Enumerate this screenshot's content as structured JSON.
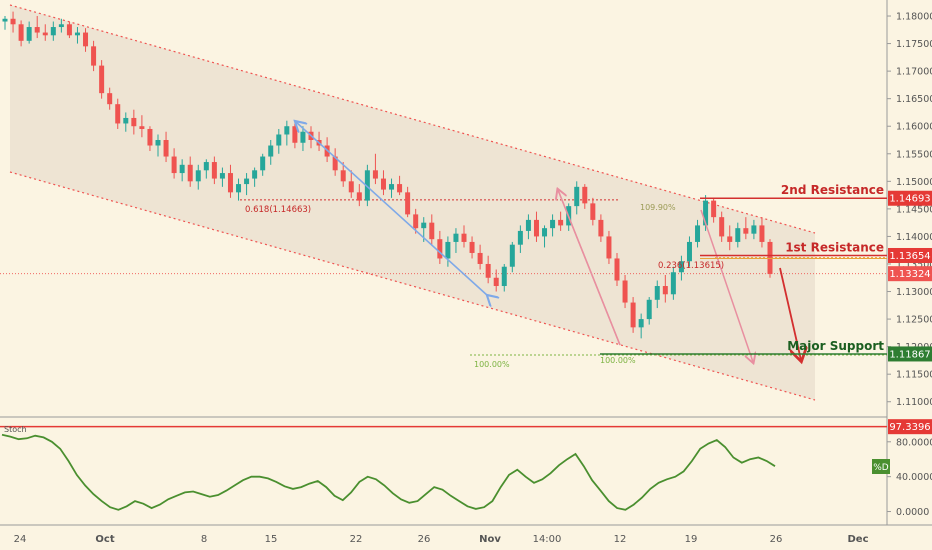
{
  "chart_data": [
    {
      "type": "candlestick",
      "y_ticks": [
        "1.18000",
        "1.17500",
        "1.17000",
        "1.16500",
        "1.16000",
        "1.15500",
        "1.15000",
        "1.14500",
        "1.14000",
        "1.13500",
        "1.13000",
        "1.12500",
        "1.12000",
        "1.11500",
        "1.11000"
      ],
      "ylim": [
        1.1085,
        1.182
      ],
      "x_ticks": [
        "24",
        "Oct",
        "8",
        "15",
        "22",
        "26",
        "Nov",
        "14:00",
        "12",
        "19",
        "26",
        "Dec"
      ],
      "candles": [
        [
          1.179,
          1.18,
          1.1775,
          1.1795
        ],
        [
          1.1795,
          1.1808,
          1.177,
          1.1785
        ],
        [
          1.1785,
          1.1792,
          1.1745,
          1.1755
        ],
        [
          1.1755,
          1.179,
          1.175,
          1.178
        ],
        [
          1.178,
          1.18,
          1.176,
          1.177
        ],
        [
          1.177,
          1.1785,
          1.1755,
          1.1765
        ],
        [
          1.1765,
          1.179,
          1.1755,
          1.178
        ],
        [
          1.178,
          1.1795,
          1.177,
          1.1785
        ],
        [
          1.1785,
          1.179,
          1.176,
          1.1765
        ],
        [
          1.1765,
          1.178,
          1.175,
          1.177
        ],
        [
          1.177,
          1.1778,
          1.1735,
          1.1745
        ],
        [
          1.1745,
          1.1755,
          1.17,
          1.171
        ],
        [
          1.171,
          1.172,
          1.165,
          1.166
        ],
        [
          1.166,
          1.167,
          1.163,
          1.164
        ],
        [
          1.164,
          1.165,
          1.1595,
          1.1605
        ],
        [
          1.1605,
          1.1625,
          1.159,
          1.1615
        ],
        [
          1.1615,
          1.163,
          1.1585,
          1.16
        ],
        [
          1.16,
          1.162,
          1.158,
          1.1595
        ],
        [
          1.1595,
          1.16,
          1.1555,
          1.1565
        ],
        [
          1.1565,
          1.1585,
          1.1545,
          1.1575
        ],
        [
          1.1575,
          1.159,
          1.1535,
          1.1545
        ],
        [
          1.1545,
          1.156,
          1.1505,
          1.1515
        ],
        [
          1.1515,
          1.154,
          1.15,
          1.153
        ],
        [
          1.153,
          1.1545,
          1.149,
          1.15
        ],
        [
          1.15,
          1.153,
          1.1485,
          1.152
        ],
        [
          1.152,
          1.154,
          1.1505,
          1.1535
        ],
        [
          1.1535,
          1.1545,
          1.1495,
          1.1505
        ],
        [
          1.1505,
          1.1525,
          1.149,
          1.1515
        ],
        [
          1.1515,
          1.153,
          1.147,
          1.148
        ],
        [
          1.148,
          1.1505,
          1.1465,
          1.1495
        ],
        [
          1.1495,
          1.1515,
          1.1475,
          1.1505
        ],
        [
          1.1505,
          1.1525,
          1.149,
          1.152
        ],
        [
          1.152,
          1.155,
          1.151,
          1.1545
        ],
        [
          1.1545,
          1.1575,
          1.153,
          1.1565
        ],
        [
          1.1565,
          1.1595,
          1.155,
          1.1585
        ],
        [
          1.1585,
          1.161,
          1.1565,
          1.16
        ],
        [
          1.16,
          1.1605,
          1.156,
          1.157
        ],
        [
          1.157,
          1.16,
          1.1555,
          1.159
        ],
        [
          1.159,
          1.16,
          1.156,
          1.1575
        ],
        [
          1.1575,
          1.159,
          1.1555,
          1.1565
        ],
        [
          1.1565,
          1.158,
          1.1535,
          1.1545
        ],
        [
          1.1545,
          1.156,
          1.151,
          1.152
        ],
        [
          1.152,
          1.1535,
          1.149,
          1.15
        ],
        [
          1.15,
          1.152,
          1.147,
          1.148
        ],
        [
          1.148,
          1.1495,
          1.1455,
          1.1465
        ],
        [
          1.1465,
          1.153,
          1.1455,
          1.152
        ],
        [
          1.152,
          1.155,
          1.1495,
          1.1505
        ],
        [
          1.1505,
          1.152,
          1.1475,
          1.1485
        ],
        [
          1.1485,
          1.1505,
          1.147,
          1.1495
        ],
        [
          1.1495,
          1.151,
          1.1475,
          1.148
        ],
        [
          1.148,
          1.149,
          1.1435,
          1.144
        ],
        [
          1.144,
          1.145,
          1.1405,
          1.1415
        ],
        [
          1.1415,
          1.1435,
          1.139,
          1.1425
        ],
        [
          1.1425,
          1.144,
          1.1385,
          1.1395
        ],
        [
          1.1395,
          1.141,
          1.135,
          1.136
        ],
        [
          1.136,
          1.14,
          1.1345,
          1.139
        ],
        [
          1.139,
          1.1415,
          1.137,
          1.1405
        ],
        [
          1.1405,
          1.142,
          1.138,
          1.139
        ],
        [
          1.139,
          1.14,
          1.136,
          1.137
        ],
        [
          1.137,
          1.1385,
          1.134,
          1.135
        ],
        [
          1.135,
          1.1365,
          1.1315,
          1.1325
        ],
        [
          1.1325,
          1.134,
          1.13,
          1.131
        ],
        [
          1.131,
          1.135,
          1.13,
          1.1345
        ],
        [
          1.1345,
          1.139,
          1.1335,
          1.1385
        ],
        [
          1.1385,
          1.142,
          1.137,
          1.141
        ],
        [
          1.141,
          1.144,
          1.1395,
          1.143
        ],
        [
          1.143,
          1.1445,
          1.139,
          1.14
        ],
        [
          1.14,
          1.142,
          1.138,
          1.1415
        ],
        [
          1.1415,
          1.144,
          1.14,
          1.143
        ],
        [
          1.143,
          1.1445,
          1.141,
          1.142
        ],
        [
          1.142,
          1.146,
          1.141,
          1.1455
        ],
        [
          1.1455,
          1.15,
          1.144,
          1.149
        ],
        [
          1.149,
          1.1495,
          1.145,
          1.146
        ],
        [
          1.146,
          1.147,
          1.142,
          1.143
        ],
        [
          1.143,
          1.144,
          1.139,
          1.14
        ],
        [
          1.14,
          1.141,
          1.135,
          1.136
        ],
        [
          1.136,
          1.137,
          1.131,
          1.132
        ],
        [
          1.132,
          1.133,
          1.127,
          1.128
        ],
        [
          1.128,
          1.129,
          1.1225,
          1.1235
        ],
        [
          1.1235,
          1.126,
          1.1215,
          1.125
        ],
        [
          1.125,
          1.129,
          1.124,
          1.1285
        ],
        [
          1.1285,
          1.132,
          1.127,
          1.131
        ],
        [
          1.131,
          1.133,
          1.128,
          1.1295
        ],
        [
          1.1295,
          1.1345,
          1.1285,
          1.1335
        ],
        [
          1.1335,
          1.1365,
          1.132,
          1.1355
        ],
        [
          1.1355,
          1.14,
          1.1345,
          1.139
        ],
        [
          1.139,
          1.143,
          1.138,
          1.142
        ],
        [
          1.142,
          1.1475,
          1.141,
          1.1465
        ],
        [
          1.1465,
          1.147,
          1.1425,
          1.1435
        ],
        [
          1.1435,
          1.1445,
          1.139,
          1.14
        ],
        [
          1.14,
          1.142,
          1.1375,
          1.139
        ],
        [
          1.139,
          1.1425,
          1.138,
          1.1415
        ],
        [
          1.1415,
          1.1435,
          1.1395,
          1.1405
        ],
        [
          1.1405,
          1.143,
          1.1395,
          1.142
        ],
        [
          1.142,
          1.1435,
          1.138,
          1.139
        ],
        [
          1.139,
          1.1395,
          1.1325,
          1.1332
        ]
      ],
      "levels": [
        {
          "name": "2nd Resistance",
          "value": 1.14693,
          "price_label": "1.14693",
          "color": "#d32f2f"
        },
        {
          "name": "1st Resistance",
          "value": 1.13654,
          "price_label": "1.13654",
          "color": "#d32f2f"
        },
        {
          "name": "Major Support",
          "value": 1.11867,
          "price_label": "1.11867",
          "color": "#2e7d32"
        }
      ],
      "current_price": {
        "value": 1.13324,
        "label": "1.13324"
      },
      "annotations": [
        "0.618(1.14663)",
        "0.236(1.13615)",
        "109.90%",
        "100.00%",
        "100.00%"
      ],
      "colors": {
        "up": "#26a69a",
        "down": "#ef5350",
        "resistance": "#d32f2f",
        "support": "#2e7d32",
        "channel": "#ef5350",
        "blue_arrow": "#7fa9e8",
        "pink_arrow": "#e88fa0"
      }
    },
    {
      "type": "line",
      "title": "Stoch",
      "series": [
        {
          "name": "%D",
          "values": [
            88,
            86,
            83,
            84,
            87,
            85,
            80,
            72,
            58,
            42,
            30,
            20,
            12,
            5,
            2,
            6,
            12,
            9,
            4,
            8,
            14,
            18,
            22,
            23,
            20,
            17,
            19,
            24,
            30,
            36,
            40,
            40,
            38,
            34,
            29,
            26,
            28,
            32,
            35,
            28,
            18,
            13,
            22,
            34,
            40,
            37,
            30,
            21,
            14,
            10,
            12,
            20,
            28,
            25,
            18,
            12,
            6,
            3,
            5,
            12,
            28,
            42,
            48,
            40,
            33,
            37,
            44,
            53,
            60,
            66,
            52,
            36,
            24,
            12,
            4,
            2,
            8,
            16,
            26,
            33,
            37,
            40,
            46,
            58,
            72,
            78,
            82,
            74,
            62,
            56,
            60,
            62,
            58,
            52
          ]
        }
      ],
      "y_ticks": [
        "80.0000",
        "40.0000",
        "0.0000"
      ],
      "ylim": [
        -12,
        105
      ],
      "level": {
        "value": 97.3396,
        "label": "97.3396"
      },
      "legend_label": "%D",
      "color": "#4a8f2f"
    }
  ]
}
